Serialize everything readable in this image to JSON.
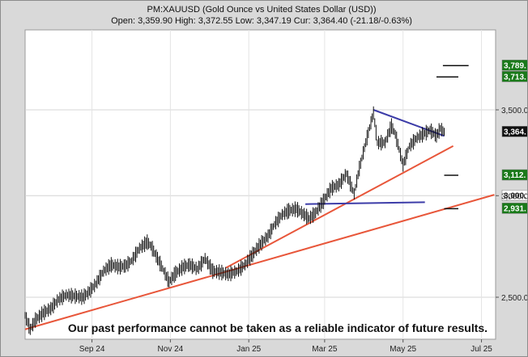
{
  "chart_data": {
    "type": "line",
    "style": "ohlc-bars",
    "header": {
      "title": "PM:XAUUSD (Gold Ounce vs United States Dollar (USD))",
      "stats": "Open: 3,359.90 High: 3,372.55 Low: 3,347.19 Cur: 3,364.40 (-21.18/-0.63%)"
    },
    "x_ticks": [
      "Sep 24",
      "Nov 24",
      "Jan 25",
      "Mar 25",
      "May 25",
      "Jul 25"
    ],
    "y_ticks": [
      "2,500.0",
      "3,000.0",
      "3,500.0"
    ],
    "scale": "log",
    "grid": true,
    "series": [
      {
        "values": [
          [
            "2024-07-25",
            2420
          ],
          [
            "2024-07-29",
            2360
          ],
          [
            "2024-08-02",
            2400
          ],
          [
            "2024-08-08",
            2430
          ],
          [
            "2024-08-14",
            2450
          ],
          [
            "2024-08-20",
            2490
          ],
          [
            "2024-08-26",
            2510
          ],
          [
            "2024-09-02",
            2505
          ],
          [
            "2024-09-08",
            2500
          ],
          [
            "2024-09-12",
            2520
          ],
          [
            "2024-09-18",
            2560
          ],
          [
            "2024-09-24",
            2620
          ],
          [
            "2024-09-30",
            2650
          ],
          [
            "2024-10-06",
            2640
          ],
          [
            "2024-10-11",
            2645
          ],
          [
            "2024-10-16",
            2670
          ],
          [
            "2024-10-22",
            2730
          ],
          [
            "2024-10-28",
            2760
          ],
          [
            "2024-10-31",
            2740
          ],
          [
            "2024-11-05",
            2680
          ],
          [
            "2024-11-10",
            2620
          ],
          [
            "2024-11-14",
            2570
          ],
          [
            "2024-11-19",
            2610
          ],
          [
            "2024-11-25",
            2640
          ],
          [
            "2024-11-30",
            2650
          ],
          [
            "2024-12-06",
            2630
          ],
          [
            "2024-12-12",
            2680
          ],
          [
            "2024-12-18",
            2620
          ],
          [
            "2024-12-24",
            2615
          ],
          [
            "2024-12-30",
            2605
          ],
          [
            "2025-01-06",
            2620
          ],
          [
            "2025-01-12",
            2650
          ],
          [
            "2025-01-18",
            2700
          ],
          [
            "2025-01-24",
            2750
          ],
          [
            "2025-01-30",
            2790
          ],
          [
            "2025-02-04",
            2850
          ],
          [
            "2025-02-10",
            2900
          ],
          [
            "2025-02-15",
            2920
          ],
          [
            "2025-02-21",
            2930
          ],
          [
            "2025-02-27",
            2900
          ],
          [
            "2025-03-03",
            2880
          ],
          [
            "2025-03-08",
            2910
          ],
          [
            "2025-03-14",
            2970
          ],
          [
            "2025-03-20",
            3040
          ],
          [
            "2025-03-26",
            3060
          ],
          [
            "2025-04-01",
            3120
          ],
          [
            "2025-04-07",
            3010
          ],
          [
            "2025-04-11",
            3150
          ],
          [
            "2025-04-16",
            3300
          ],
          [
            "2025-04-22",
            3480
          ],
          [
            "2025-04-25",
            3300
          ],
          [
            "2025-05-01",
            3300
          ],
          [
            "2025-05-06",
            3400
          ],
          [
            "2025-05-09",
            3350
          ],
          [
            "2025-05-15",
            3170
          ],
          [
            "2025-05-20",
            3280
          ],
          [
            "2025-05-26",
            3330
          ],
          [
            "2025-06-02",
            3360
          ],
          [
            "2025-06-05",
            3375
          ],
          [
            "2025-06-10",
            3340
          ],
          [
            "2025-06-13",
            3385
          ],
          [
            "2025-06-16",
            3364
          ]
        ]
      }
    ],
    "trend_lines": [
      {
        "color": "#e8563a",
        "from": [
          "2024-07-25",
          2360
        ],
        "to": [
          "2025-07-25",
          3005
        ]
      },
      {
        "color": "#e8563a",
        "from": [
          "2024-12-28",
          2635
        ],
        "to": [
          "2025-06-23",
          3280
        ]
      },
      {
        "color": "#3c3ca8",
        "from": [
          "2025-02-28",
          2955
        ],
        "to": [
          "2025-06-01",
          2965
        ]
      },
      {
        "color": "#3c3ca8",
        "from": [
          "2025-04-22",
          3500
        ],
        "to": [
          "2025-06-16",
          3340
        ]
      }
    ],
    "target_marks": [
      {
        "value": 3789,
        "date_from": "2025-06-15",
        "date_to": "2025-07-05"
      },
      {
        "value": 3713,
        "date_from": "2025-06-10",
        "date_to": "2025-06-27"
      },
      {
        "value": 3112,
        "date_from": "2025-06-16",
        "date_to": "2025-06-27"
      },
      {
        "value": 2931,
        "date_from": "2025-06-16",
        "date_to": "2025-06-27"
      }
    ],
    "price_badges": [
      {
        "text": "3,789.",
        "value": 3789,
        "bg": "#1a7a1a",
        "fg": "#ffffff"
      },
      {
        "text": "3,713.",
        "value": 3713,
        "bg": "#1a7a1a",
        "fg": "#ffffff"
      },
      {
        "text": "3,364.",
        "value": 3364,
        "bg": "#111111",
        "fg": "#ffffff"
      },
      {
        "text": "3,112.",
        "value": 3112,
        "bg": "#1a7a1a",
        "fg": "#ffffff"
      },
      {
        "text": "3,000.",
        "value": 3000,
        "bg": "#ffffff",
        "fg": "#111111"
      },
      {
        "text": "2,931.",
        "value": 2931,
        "bg": "#1a7a1a",
        "fg": "#ffffff"
      }
    ],
    "annotation": "Our past performance cannot be taken as a reliable indicator of future results."
  }
}
